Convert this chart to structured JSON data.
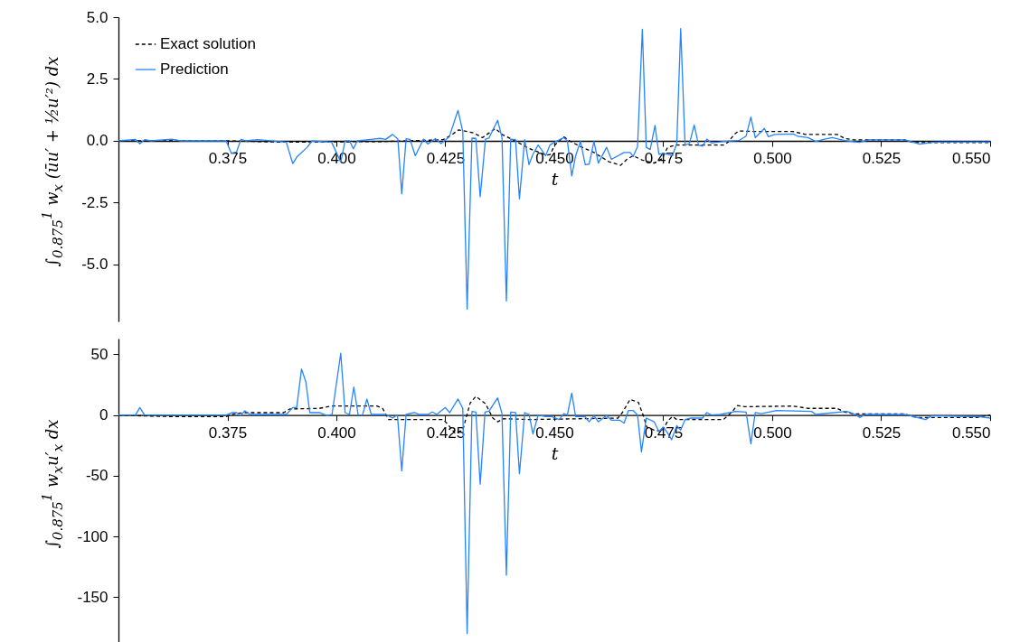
{
  "chart_data": [
    {
      "type": "line",
      "ylabel": "∫$_{0.875}$$^{1}$ w$_{x}$ (ūu′ + ½u′²) dx",
      "xlabel": "t",
      "xlim": [
        0.35,
        0.55
      ],
      "xticks": [
        0.375,
        {
          "value": 0.4,
          "label": "0.400"
        },
        0.425,
        {
          "value": 0.45,
          "label": "0.450"
        },
        0.475,
        {
          "value": 0.5,
          "label": "0.500"
        },
        0.525,
        {
          "value": 0.55,
          "label": "0.550"
        }
      ],
      "ylim": [
        -7.3,
        5.0
      ],
      "yticks": [
        {
          "value": -5,
          "label": "-5.0"
        },
        {
          "value": -2.5,
          "label": "-2.5"
        },
        {
          "value": 0,
          "label": "0.0"
        },
        {
          "value": 2.5,
          "label": "2.5"
        },
        {
          "value": 5,
          "label": "5.0"
        }
      ],
      "legend": "top left",
      "series": [
        {
          "name": "Exact solution",
          "color": "#000000",
          "line_style": "dashed",
          "x": [
            0.35,
            0.375,
            0.3875,
            0.41,
            0.42,
            0.4245,
            0.4266,
            0.428,
            0.43,
            0.4315,
            0.4335,
            0.4365,
            0.438,
            0.441,
            0.444,
            0.448,
            0.449,
            0.4501,
            0.4522,
            0.4536,
            0.456,
            0.4591,
            0.4625,
            0.4652,
            0.4667,
            0.4681,
            0.4702,
            0.4729,
            0.4747,
            0.476,
            0.4778,
            0.4888,
            0.4899,
            0.4913,
            0.4923,
            0.4958,
            0.5048,
            0.5076,
            0.5149,
            0.5166,
            0.5186,
            0.5304,
            0.5324,
            0.55
          ],
          "values": [
            0,
            0,
            -0.05,
            -0.03,
            0.02,
            0.05,
            0.26,
            0.44,
            0.38,
            0.32,
            0.13,
            0.5,
            0.26,
            0,
            -0.29,
            -0.57,
            -0.56,
            -0.17,
            0.16,
            -0.01,
            -0.23,
            -0.47,
            -0.84,
            -0.99,
            -0.74,
            -0.6,
            -0.78,
            -0.9,
            -0.72,
            -0.26,
            -0.17,
            -0.17,
            -0.05,
            0.26,
            0.4,
            0.38,
            0.38,
            0.26,
            0.26,
            0.1,
            0.04,
            0.04,
            -0.07,
            -0.07
          ]
        },
        {
          "name": "Prediction",
          "color": "#2584ff",
          "line_style": "solid",
          "x": [
            0.35,
            0.3539,
            0.3549,
            0.356,
            0.3574,
            0.3622,
            0.3643,
            0.3747,
            0.3759,
            0.3771,
            0.3781,
            0.3792,
            0.3819,
            0.3885,
            0.39,
            0.3909,
            0.3933,
            0.3944,
            0.3989,
            0.401,
            0.402,
            0.403,
            0.4039,
            0.4048,
            0.4079,
            0.41,
            0.4113,
            0.4129,
            0.4141,
            0.415,
            0.416,
            0.4169,
            0.4181,
            0.42,
            0.421,
            0.4227,
            0.424,
            0.4259,
            0.4279,
            0.429,
            0.43,
            0.4311,
            0.432,
            0.433,
            0.4342,
            0.435,
            0.437,
            0.438,
            0.439,
            0.44,
            0.4411,
            0.442,
            0.4432,
            0.4442,
            0.4451,
            0.4463,
            0.448,
            0.449,
            0.4504,
            0.4522,
            0.453,
            0.454,
            0.4549,
            0.456,
            0.4571,
            0.458,
            0.4591,
            0.4601,
            0.462,
            0.4631,
            0.466,
            0.4674,
            0.4681,
            0.4691,
            0.4702,
            0.4711,
            0.472,
            0.4731,
            0.474,
            0.475,
            0.476,
            0.4771,
            0.4781,
            0.479,
            0.48,
            0.481,
            0.4821,
            0.4831,
            0.484,
            0.485,
            0.4861,
            0.4888,
            0.4923,
            0.494,
            0.4951,
            0.4961,
            0.4982,
            0.4991,
            0.5006,
            0.5048,
            0.5058,
            0.5082,
            0.51,
            0.512,
            0.5138,
            0.5166,
            0.52,
            0.5221,
            0.5304,
            0.5338,
            0.5373,
            0.55
          ],
          "values": [
            0,
            0.06,
            -0.12,
            0.05,
            0,
            0.07,
            0,
            0,
            -0.5,
            -0.45,
            0.06,
            0,
            0.05,
            -0.05,
            -0.92,
            -0.66,
            -0.26,
            0,
            -0.05,
            -0.86,
            0,
            0,
            -0.32,
            0,
            0.06,
            0.1,
            0.06,
            0.26,
            0.07,
            -2.14,
            0.09,
            0.06,
            -0.6,
            0.07,
            -0.13,
            0.09,
            -0.11,
            0.16,
            1.23,
            0.38,
            -6.8,
            0.11,
            0.1,
            -2.26,
            0.07,
            0.11,
            0.83,
            0.13,
            -6.47,
            0.07,
            0.05,
            -2.34,
            0.05,
            -0.96,
            -0.54,
            -0.17,
            -0.6,
            -0.17,
            -0.02,
            0.13,
            0,
            -1.42,
            -0.6,
            -0.02,
            -0.96,
            -0.94,
            -0.02,
            -0.9,
            -0.26,
            -0.75,
            -0.47,
            -0.47,
            -0.63,
            -0.23,
            4.51,
            -0.26,
            -0.35,
            0.62,
            -0.54,
            -0.51,
            -0.54,
            -0.6,
            -0.11,
            4.54,
            -0.17,
            -0.11,
            0.64,
            -0.18,
            -0.21,
            0.07,
            -0.09,
            -0.02,
            0.01,
            0.19,
            0.96,
            0.13,
            0.5,
            0.17,
            0.26,
            0.28,
            0.19,
            0.13,
            -0.02,
            0.07,
            0.13,
            0.01,
            -0.06,
            0.04,
            0.04,
            -0.13,
            -0.05,
            -0.04
          ]
        }
      ]
    },
    {
      "type": "line",
      "ylabel": "∫$_{0.875}$$^{1}$ w$_{x}$u′$_{x}$ dx",
      "xlabel": "t",
      "xlim": [
        0.35,
        0.55
      ],
      "xticks": [
        0.375,
        {
          "value": 0.4,
          "label": "0.400"
        },
        0.425,
        {
          "value": 0.45,
          "label": "0.450"
        },
        0.475,
        {
          "value": 0.5,
          "label": "0.500"
        },
        0.525,
        {
          "value": 0.55,
          "label": "0.550"
        }
      ],
      "ylim": [
        -190,
        63
      ],
      "yticks": [
        -150,
        -100,
        -50,
        0,
        50
      ],
      "series": [
        {
          "color": "#000000",
          "line_style": "dashed",
          "x": [
            0.35,
            0.3539,
            0.3615,
            0.3747,
            0.3768,
            0.3789,
            0.3879,
            0.3893,
            0.3961,
            0.3989,
            0.4093,
            0.4106,
            0.412,
            0.4141,
            0.4245,
            0.4255,
            0.4272,
            0.429,
            0.4307,
            0.432,
            0.4342,
            0.4359,
            0.437,
            0.4384,
            0.4446,
            0.4646,
            0.4656,
            0.4674,
            0.4693,
            0.4705,
            0.4712,
            0.4729,
            0.4747,
            0.476,
            0.4771,
            0.4781,
            0.4888,
            0.4906,
            0.492,
            0.4937,
            0.5048,
            0.5082,
            0.5149,
            0.5166,
            0.5186,
            0.5304,
            0.5321,
            0.5335,
            0.547,
            0.55
          ],
          "values": [
            0,
            -0.5,
            -1.2,
            -1.2,
            1.2,
            2,
            2,
            5,
            5.5,
            7.4,
            7.4,
            5.5,
            -3.7,
            -3.7,
            -3.7,
            -7.4,
            -14.9,
            -12.4,
            9.9,
            15.4,
            9.4,
            -2.5,
            -5.5,
            -3,
            -3.7,
            -2.5,
            2,
            12.9,
            10.4,
            -1.2,
            -9.9,
            -12.4,
            -13.6,
            -5,
            -1.2,
            -3.7,
            -3.7,
            2,
            7.9,
            6.9,
            7.4,
            5.5,
            5.5,
            2.5,
            1,
            1,
            -1.2,
            -2,
            -2,
            0
          ]
        },
        {
          "color": "#2584ff",
          "line_style": "solid",
          "x": [
            0.35,
            0.3539,
            0.3549,
            0.356,
            0.3747,
            0.3761,
            0.3771,
            0.378,
            0.379,
            0.3802,
            0.3885,
            0.39,
            0.3909,
            0.392,
            0.393,
            0.3939,
            0.3961,
            0.3979,
            0.399,
            0.401,
            0.402,
            0.403,
            0.404,
            0.405,
            0.406,
            0.407,
            0.408,
            0.4113,
            0.4129,
            0.414,
            0.415,
            0.416,
            0.4179,
            0.419,
            0.421,
            0.422,
            0.423,
            0.425,
            0.426,
            0.4279,
            0.429,
            0.43,
            0.4311,
            0.432,
            0.433,
            0.4341,
            0.435,
            0.437,
            0.438,
            0.439,
            0.44,
            0.4411,
            0.442,
            0.4432,
            0.4442,
            0.4451,
            0.4463,
            0.448,
            0.4494,
            0.4511,
            0.4522,
            0.453,
            0.454,
            0.4549,
            0.457,
            0.458,
            0.4591,
            0.4601,
            0.462,
            0.4631,
            0.465,
            0.466,
            0.467,
            0.4681,
            0.4691,
            0.47,
            0.4711,
            0.4729,
            0.474,
            0.475,
            0.476,
            0.4769,
            0.4781,
            0.479,
            0.48,
            0.4812,
            0.484,
            0.485,
            0.4861,
            0.4881,
            0.4916,
            0.494,
            0.4951,
            0.4961,
            0.4975,
            0.501,
            0.509,
            0.51,
            0.517,
            0.518,
            0.5193,
            0.5201,
            0.5214,
            0.5304,
            0.5352,
            0.5366,
            0.5477,
            0.55
          ],
          "values": [
            0,
            0,
            6.2,
            0,
            0,
            2,
            2,
            -0.5,
            3.5,
            0.5,
            0.5,
            6.2,
            6.2,
            38,
            27.3,
            2,
            2,
            -0.5,
            0.5,
            50.9,
            2,
            0.5,
            23,
            0,
            0,
            13.2,
            0.5,
            0.5,
            -2.5,
            0,
            -45.9,
            0.5,
            2,
            0.5,
            0.5,
            2.5,
            0.5,
            6.2,
            2,
            13.2,
            5.5,
            -180,
            3,
            2.5,
            -57,
            2.5,
            3.2,
            14.1,
            1.2,
            -132,
            2.5,
            2,
            -48.4,
            2,
            0.5,
            -15.6,
            0,
            -1.2,
            -1.2,
            -3.7,
            1.2,
            0,
            18.1,
            -1.2,
            -1.2,
            -5.5,
            -0.5,
            -5.5,
            -0.5,
            -4.2,
            -4.2,
            -6.7,
            3.7,
            3.7,
            0,
            -30.3,
            -2.5,
            -5.5,
            -13.6,
            -9.9,
            -14.9,
            -20.3,
            -8.7,
            -12.4,
            -3.7,
            -2.5,
            -2.5,
            2,
            0,
            0.5,
            3,
            2.5,
            -23.6,
            2,
            1.2,
            3.7,
            3,
            0.5,
            3,
            2,
            0,
            -2,
            0.5,
            0.5,
            -3.7,
            -0.5,
            -1.5,
            -2.5
          ]
        }
      ]
    }
  ]
}
